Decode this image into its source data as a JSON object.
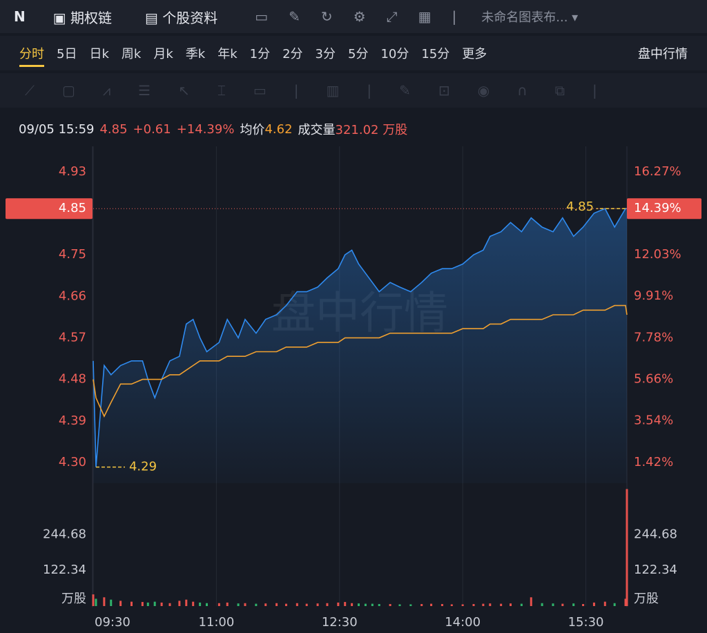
{
  "toolbar": {
    "logo": "N",
    "option_chain": "期权链",
    "profile": "个股资料",
    "layout": "未命名图表布..."
  },
  "tabs": {
    "items": [
      "分时",
      "5日",
      "日k",
      "周k",
      "月k",
      "季k",
      "年k",
      "1分",
      "2分",
      "3分",
      "5分",
      "10分",
      "15分",
      "更多"
    ],
    "right": "盘中行情"
  },
  "info": {
    "time": "09/05 15:59",
    "price": "4.85",
    "change": "+0.61",
    "change_pct": "+14.39%",
    "avg_label": "均价",
    "avg": "4.62",
    "volume_label": "成交量",
    "volume": "321.02 万股"
  },
  "chart_data": {
    "type": "line",
    "watermark": "盘中行情",
    "x": [
      0,
      2,
      8,
      13,
      20,
      28,
      36,
      40,
      45,
      50,
      56,
      63,
      68,
      73,
      78,
      83,
      92,
      98,
      106,
      111,
      119,
      126,
      134,
      141,
      149,
      156,
      164,
      171,
      179,
      184,
      189,
      194,
      199,
      204,
      209,
      217,
      224,
      232,
      240,
      247,
      255,
      262,
      270,
      278,
      285,
      290,
      298,
      305,
      313,
      320,
      328,
      336,
      343,
      351,
      358,
      366,
      374,
      381,
      389,
      390
    ],
    "series": [
      {
        "name": "price",
        "color": "#2f8bf0",
        "values": [
          4.52,
          4.29,
          4.51,
          4.49,
          4.51,
          4.52,
          4.52,
          4.48,
          4.44,
          4.48,
          4.52,
          4.53,
          4.6,
          4.61,
          4.57,
          4.54,
          4.56,
          4.61,
          4.57,
          4.61,
          4.58,
          4.61,
          4.62,
          4.64,
          4.67,
          4.67,
          4.68,
          4.7,
          4.72,
          4.75,
          4.76,
          4.73,
          4.71,
          4.69,
          4.67,
          4.69,
          4.68,
          4.67,
          4.69,
          4.71,
          4.72,
          4.72,
          4.73,
          4.75,
          4.76,
          4.79,
          4.8,
          4.82,
          4.8,
          4.83,
          4.81,
          4.8,
          4.83,
          4.79,
          4.81,
          4.84,
          4.85,
          4.81,
          4.85,
          4.85
        ]
      },
      {
        "name": "avg",
        "color": "#f0a030",
        "values": [
          4.48,
          4.44,
          4.4,
          4.43,
          4.47,
          4.47,
          4.48,
          4.48,
          4.48,
          4.48,
          4.49,
          4.49,
          4.5,
          4.51,
          4.52,
          4.52,
          4.52,
          4.53,
          4.53,
          4.53,
          4.54,
          4.54,
          4.54,
          4.55,
          4.55,
          4.55,
          4.56,
          4.56,
          4.56,
          4.57,
          4.57,
          4.57,
          4.57,
          4.57,
          4.57,
          4.58,
          4.58,
          4.58,
          4.58,
          4.58,
          4.58,
          4.58,
          4.59,
          4.59,
          4.59,
          4.6,
          4.6,
          4.61,
          4.61,
          4.61,
          4.61,
          4.62,
          4.62,
          4.62,
          4.63,
          4.63,
          4.63,
          4.64,
          4.64,
          4.62
        ]
      }
    ],
    "volume": [
      40,
      25,
      30,
      22,
      18,
      15,
      14,
      12,
      15,
      12,
      10,
      18,
      22,
      15,
      12,
      10,
      10,
      12,
      9,
      10,
      8,
      9,
      10,
      8,
      10,
      8,
      9,
      10,
      12,
      14,
      10,
      9,
      8,
      8,
      7,
      7,
      6,
      6,
      7,
      8,
      7,
      6,
      6,
      7,
      8,
      9,
      8,
      9,
      8,
      30,
      10,
      9,
      8,
      9,
      7,
      12,
      15,
      10,
      25,
      400
    ],
    "up_color": "#e8514c",
    "down_color": "#2fb36b",
    "xlim": [
      0,
      390
    ],
    "xticks": [
      {
        "value": 0,
        "label": "09:30"
      },
      {
        "value": 90,
        "label": "11:00"
      },
      {
        "value": 180,
        "label": "12:30"
      },
      {
        "value": 270,
        "label": "14:00"
      },
      {
        "value": 360,
        "label": "15:30"
      }
    ],
    "ylim": [
      4.255,
      4.985
    ],
    "yticks": [
      4.93,
      4.75,
      4.66,
      4.57,
      4.48,
      4.39,
      {
        "value": 4.3,
        "label": "4.30"
      }
    ],
    "y2lim": [
      0.354,
      17.571
    ],
    "y2ticks": [
      {
        "value": 16.27,
        "label": "16.27%"
      },
      {
        "value": 12.03,
        "label": "12.03%"
      },
      {
        "value": 9.91,
        "label": "9.91%"
      },
      {
        "value": 7.78,
        "label": "7.78%"
      },
      {
        "value": 5.66,
        "label": "5.66%"
      },
      {
        "value": 3.54,
        "label": "3.54%"
      },
      {
        "value": 1.42,
        "label": "1.42%"
      }
    ],
    "current": {
      "value": 4.85,
      "label": "4.85",
      "pct_label": "14.39%"
    },
    "annotations": [
      {
        "x": 2,
        "y": 4.29,
        "label": "4.29"
      },
      {
        "x": 389,
        "y": 4.85,
        "label": "4.85"
      }
    ],
    "volume_lim": [
      0,
      420
    ],
    "volume_ticks": [
      {
        "value": 244.68,
        "label": "244.68"
      },
      {
        "value": 122.34,
        "label": "122.34"
      }
    ],
    "volume_unit": "万股"
  }
}
